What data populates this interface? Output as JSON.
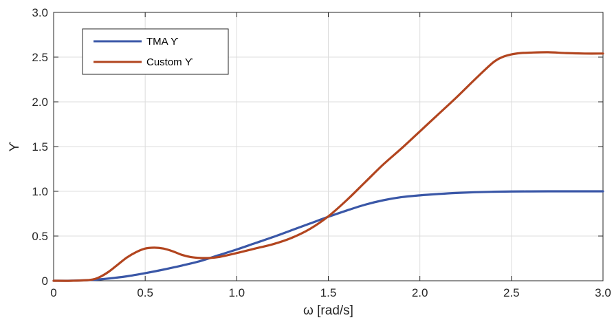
{
  "chart_data": {
    "type": "line",
    "xlabel": "ω [rad/s]",
    "ylabel": "ϒ",
    "xlim": [
      0,
      3.0
    ],
    "ylim": [
      0,
      3.0
    ],
    "xticks": [
      0,
      0.5,
      1.0,
      1.5,
      2.0,
      2.5,
      3.0
    ],
    "xtick_labels": [
      "0",
      "0.5",
      "1.0",
      "1.5",
      "2.0",
      "2.5",
      "3.0"
    ],
    "yticks": [
      0,
      0.5,
      1.0,
      1.5,
      2.0,
      2.5,
      3.0
    ],
    "ytick_labels": [
      "0",
      "0.5",
      "1.0",
      "1.5",
      "2.0",
      "2.5",
      "3.0"
    ],
    "grid": true,
    "legend_position": "top-left",
    "series": [
      {
        "name": "TMA ϒ",
        "color": "#3a57a7",
        "x": [
          0,
          0.1,
          0.2,
          0.3,
          0.4,
          0.5,
          0.6,
          0.7,
          0.8,
          0.9,
          1.0,
          1.1,
          1.2,
          1.3,
          1.4,
          1.5,
          1.6,
          1.7,
          1.8,
          1.9,
          2.0,
          2.1,
          2.2,
          2.3,
          2.4,
          2.5,
          2.6,
          2.7,
          2.8,
          2.9,
          3.0
        ],
        "y": [
          0,
          0.001,
          0.008,
          0.025,
          0.05,
          0.085,
          0.125,
          0.17,
          0.22,
          0.285,
          0.35,
          0.42,
          0.49,
          0.565,
          0.64,
          0.715,
          0.785,
          0.85,
          0.9,
          0.935,
          0.955,
          0.97,
          0.982,
          0.99,
          0.995,
          0.998,
          0.999,
          1.0,
          1.0,
          1.0,
          1.0
        ]
      },
      {
        "name": "Custom ϒ",
        "color": "#b2451f",
        "x": [
          0,
          0.1,
          0.2,
          0.25,
          0.3,
          0.35,
          0.4,
          0.45,
          0.5,
          0.55,
          0.6,
          0.65,
          0.7,
          0.75,
          0.8,
          0.85,
          0.9,
          1.0,
          1.1,
          1.2,
          1.3,
          1.4,
          1.5,
          1.6,
          1.7,
          1.8,
          1.9,
          2.0,
          2.1,
          2.2,
          2.3,
          2.4,
          2.45,
          2.5,
          2.55,
          2.6,
          2.7,
          2.8,
          2.9,
          3.0
        ],
        "y": [
          0,
          0.0,
          0.01,
          0.04,
          0.1,
          0.18,
          0.26,
          0.32,
          0.36,
          0.37,
          0.36,
          0.33,
          0.29,
          0.265,
          0.255,
          0.255,
          0.265,
          0.31,
          0.36,
          0.41,
          0.48,
          0.58,
          0.72,
          0.9,
          1.1,
          1.3,
          1.48,
          1.67,
          1.86,
          2.05,
          2.25,
          2.44,
          2.5,
          2.53,
          2.545,
          2.55,
          2.555,
          2.545,
          2.54,
          2.54
        ]
      }
    ]
  }
}
